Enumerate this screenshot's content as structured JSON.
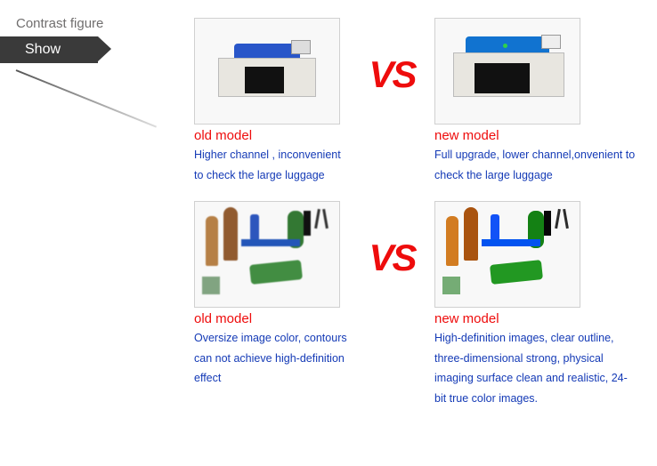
{
  "header": {
    "title": "Contrast figure",
    "show": "Show"
  },
  "vs": "VS",
  "row1": {
    "old": {
      "label": "old model",
      "desc": "Higher channel , inconvenient to check the large luggage"
    },
    "new": {
      "label": "new model",
      "desc": "Full upgrade, lower channel,onvenient  to check the large luggage"
    }
  },
  "row2": {
    "old": {
      "label": "old model",
      "desc": "Oversize image color, contours can not achieve high-definition effect"
    },
    "new": {
      "label": "new model",
      "desc": "High-definition images, clear outline, three-dimensional strong, physical imaging surface clean and realistic, 24-bit true color images."
    }
  },
  "colors": {
    "accent_red": "#ee0c0c",
    "link_blue": "#143ab6",
    "header_gray": "#706e6e",
    "dark_bg": "#3a3a3a"
  }
}
